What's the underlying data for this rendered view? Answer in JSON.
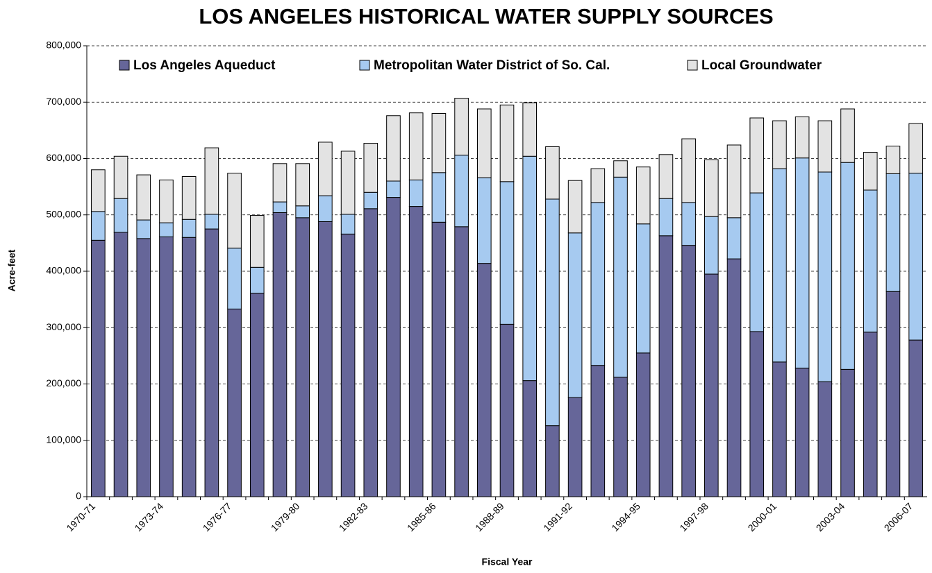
{
  "chart_data": {
    "type": "stacked-bar",
    "title": "LOS ANGELES HISTORICAL WATER SUPPLY SOURCES",
    "x_label": "Fiscal Year",
    "y_label": "Acre-feet",
    "categories": [
      "1970-71",
      null,
      null,
      "1973-74",
      null,
      null,
      "1976-77",
      null,
      null,
      "1979-80",
      null,
      null,
      "1982-83",
      null,
      null,
      "1985-86",
      null,
      null,
      "1988-89",
      null,
      null,
      "1991-92",
      null,
      null,
      "1994-95",
      null,
      null,
      "1997-98",
      null,
      null,
      "2000-01",
      null,
      null,
      "2003-04",
      null,
      null,
      "2006-07"
    ],
    "series": [
      {
        "name": "Los Angeles Aqueduct",
        "color": "#666699",
        "values": [
          455000,
          469000,
          458000,
          461000,
          460000,
          475000,
          333000,
          361000,
          504000,
          495000,
          488000,
          466000,
          511000,
          531000,
          515000,
          487000,
          479000,
          414000,
          306000,
          206000,
          126000,
          176000,
          233000,
          212000,
          255000,
          463000,
          446000,
          395000,
          422000,
          293000,
          239000,
          228000,
          204000,
          226000,
          292000,
          364000,
          278000
        ]
      },
      {
        "name": "Metropolitan Water District of So. Cal.",
        "color": "#a6caf0",
        "values": [
          51000,
          60000,
          33000,
          25000,
          32000,
          26000,
          108000,
          46000,
          19000,
          21000,
          46000,
          35000,
          29000,
          29000,
          47000,
          88000,
          127000,
          152000,
          253000,
          398000,
          402000,
          292000,
          289000,
          355000,
          229000,
          66000,
          76000,
          102000,
          73000,
          246000,
          343000,
          373000,
          372000,
          367000,
          252000,
          209000,
          296000
        ]
      },
      {
        "name": "Local Groundwater",
        "color": "#e3e3e3",
        "values": [
          74000,
          75000,
          80000,
          76000,
          76000,
          118000,
          133000,
          92000,
          68000,
          75000,
          95000,
          112000,
          87000,
          116000,
          119000,
          105000,
          101000,
          122000,
          136000,
          95000,
          93000,
          93000,
          60000,
          29000,
          101000,
          78000,
          113000,
          101000,
          129000,
          133000,
          85000,
          73000,
          91000,
          95000,
          67000,
          49000,
          88000
        ]
      }
    ],
    "ylim": [
      0,
      800000
    ],
    "yticks": [
      0,
      {
        "value": 100000,
        "label": "100,000"
      },
      {
        "value": 200000,
        "label": "200,000"
      },
      {
        "value": 300000,
        "label": "300,000"
      },
      {
        "value": 400000,
        "label": "400,000"
      },
      {
        "value": 500000,
        "label": "500,000"
      },
      {
        "value": 600000,
        "label": "600,000"
      },
      {
        "value": 700000,
        "label": "700,000"
      },
      {
        "value": 800000,
        "label": "800,000"
      }
    ],
    "grid": true
  }
}
